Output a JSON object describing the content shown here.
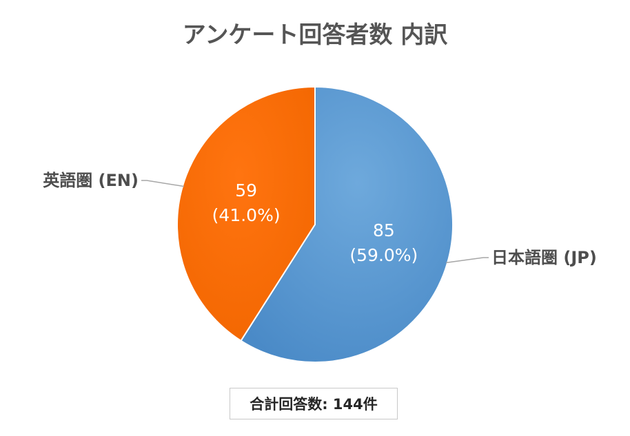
{
  "chart_data": {
    "type": "pie",
    "title": "アンケート回答者数 内訳",
    "categories": [
      "日本語圏 (JP)",
      "英語圏 (EN)"
    ],
    "values": [
      85,
      59
    ],
    "percent_labels": [
      "(59.0%)",
      "(41.0%)"
    ],
    "colors": [
      "#5b9bd5",
      "#ff6a00"
    ],
    "legend": "none",
    "start": "12 o'clock",
    "direction": "clockwise"
  },
  "summary": {
    "total_label": "合計回答数: 144件"
  }
}
